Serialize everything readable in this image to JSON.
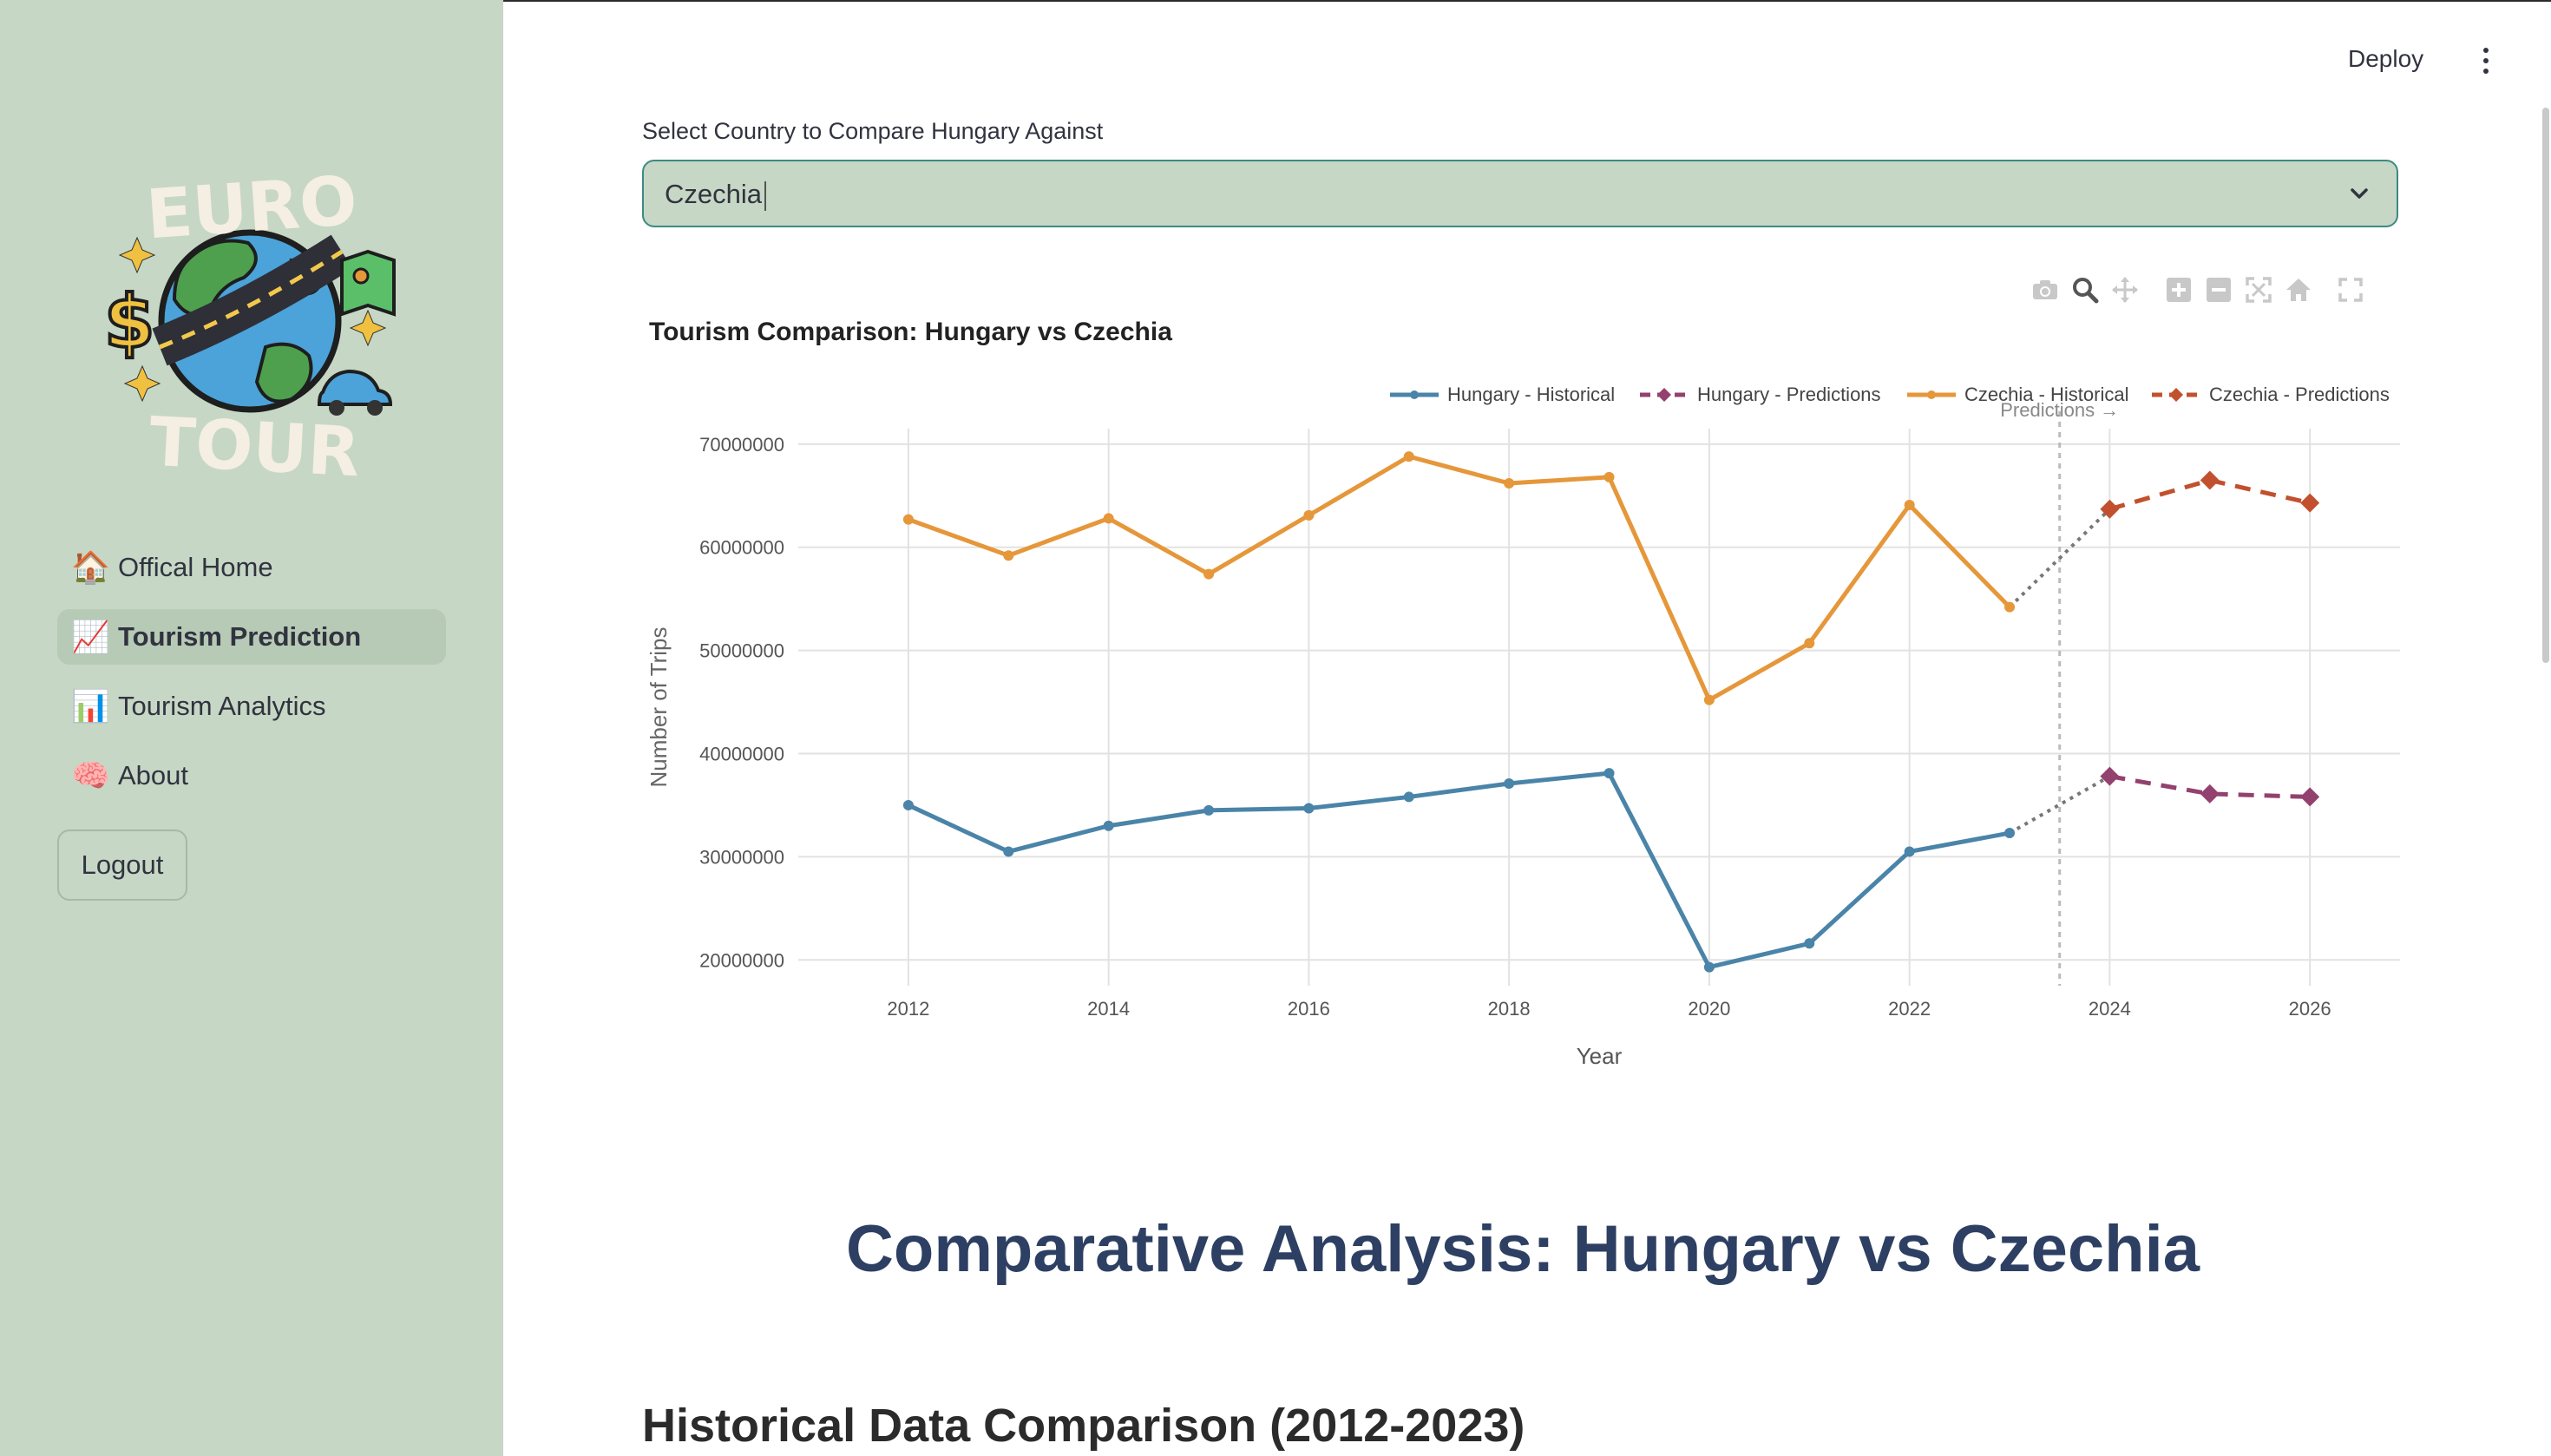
{
  "sidebar": {
    "logo": {
      "top_text": "EURO",
      "bottom_text": "TOUR"
    },
    "items": [
      {
        "label": "Offical Home",
        "icon": "house-icon",
        "emoji": "🏠",
        "active": false
      },
      {
        "label": "Tourism Prediction",
        "icon": "chart-increasing-icon",
        "emoji": "📈",
        "active": true
      },
      {
        "label": "Tourism Analytics",
        "icon": "bar-chart-icon",
        "emoji": "📊",
        "active": false
      },
      {
        "label": "About",
        "icon": "brain-icon",
        "emoji": "🧠",
        "active": false
      }
    ],
    "logout_label": "Logout"
  },
  "header": {
    "deploy_label": "Deploy"
  },
  "select": {
    "label": "Select Country to Compare Hungary Against",
    "value": "Czechia"
  },
  "chart_data": {
    "type": "line",
    "title": "Tourism Comparison: Hungary vs Czechia",
    "xlabel": "Year",
    "ylabel": "Number of Trips",
    "xlim": [
      2010.9,
      2026.9
    ],
    "ylim": [
      17500000,
      71500000
    ],
    "x_ticks": [
      2012,
      2014,
      2016,
      2018,
      2020,
      2022,
      2024,
      2026
    ],
    "y_ticks": [
      20000000,
      30000000,
      40000000,
      50000000,
      60000000,
      70000000
    ],
    "grid": true,
    "legend_position": "top-right",
    "annotation": {
      "text": "Predictions →",
      "x": 2023.5
    },
    "series": [
      {
        "name": "Hungary - Historical",
        "color": "#4a84a8",
        "dash": "solid",
        "marker": "circle",
        "x": [
          2012,
          2013,
          2014,
          2015,
          2016,
          2017,
          2018,
          2019,
          2020,
          2021,
          2022,
          2023
        ],
        "y": [
          35000000,
          30500000,
          33000000,
          34500000,
          34700000,
          35800000,
          37100000,
          38100000,
          19300000,
          21600000,
          30500000,
          32300000
        ]
      },
      {
        "name": "Hungary - Predictions",
        "color": "#93416e",
        "dash": "dash",
        "marker": "diamond",
        "x": [
          2024,
          2025,
          2026
        ],
        "y": [
          37800000,
          36100000,
          35800000
        ]
      },
      {
        "name": "Czechia - Historical",
        "color": "#e5973a",
        "dash": "solid",
        "marker": "circle",
        "x": [
          2012,
          2013,
          2014,
          2015,
          2016,
          2017,
          2018,
          2019,
          2020,
          2021,
          2022,
          2023
        ],
        "y": [
          62700000,
          59200000,
          62800000,
          57400000,
          63100000,
          68800000,
          66200000,
          66800000,
          45200000,
          50700000,
          64100000,
          54200000
        ]
      },
      {
        "name": "Czechia - Predictions",
        "color": "#c2502e",
        "dash": "dash",
        "marker": "diamond",
        "x": [
          2024,
          2025,
          2026
        ],
        "y": [
          63700000,
          66500000,
          64300000
        ]
      }
    ],
    "connectors": [
      {
        "from": [
          2023,
          32300000
        ],
        "to": [
          2024,
          37800000
        ]
      },
      {
        "from": [
          2023,
          54200000
        ],
        "to": [
          2024,
          63700000
        ]
      }
    ]
  },
  "main": {
    "comparative_heading": "Comparative Analysis: Hungary vs Czechia",
    "historical_heading": "Historical Data Comparison (2012-2023)"
  }
}
